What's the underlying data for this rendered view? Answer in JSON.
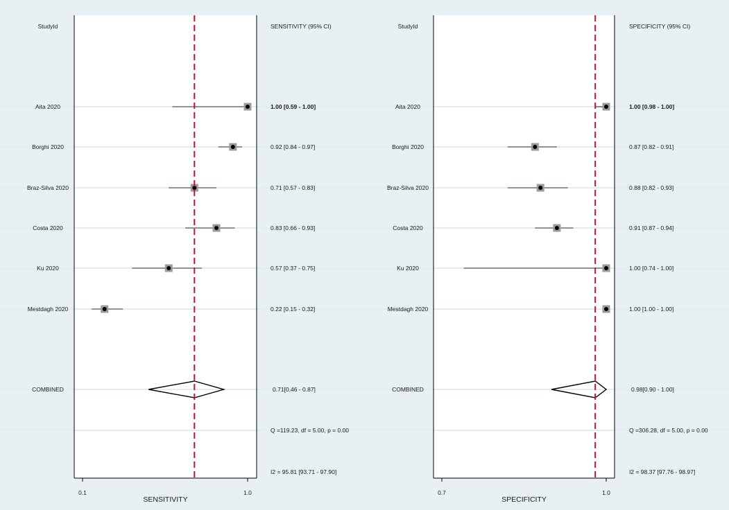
{
  "panels": [
    {
      "id": "sensitivity",
      "studyid_header": "StudyId",
      "ci_header": "SENSITIVITY (95% CI)",
      "combined_label": "COMBINED",
      "axis_title": "SENSITIVITY",
      "tick_labels": [
        "0.1",
        "1.0"
      ],
      "q_stat": "Q =119.23, df = 5.00, p =  0.00",
      "i2_stat": "I2 = 95.81 [93.71 - 97.90]"
    },
    {
      "id": "specificity",
      "studyid_header": "StudyId",
      "ci_header": "SPECIFICITY (95% CI)",
      "combined_label": "COMBINED",
      "axis_title": "SPECIFICITY",
      "tick_labels": [
        "0.7",
        "1.0"
      ],
      "q_stat": "Q =306.28, df = 5.00, p =  0.00",
      "i2_stat": "I2 = 98.37 [97.76 - 98.97]"
    }
  ],
  "chart_data": [
    {
      "type": "forest",
      "xlabel": "SENSITIVITY",
      "xlim": [
        0.1,
        1.0
      ],
      "ticks": [
        0.1,
        1.0
      ],
      "reference_line": 0.71,
      "studies": [
        {
          "name": "Aita 2020",
          "estimate": 1.0,
          "lower": 0.59,
          "upper": 1.0,
          "ci_text": "1.00 [0.59 - 1.00]",
          "bold": true
        },
        {
          "name": "Borghi 2020",
          "estimate": 0.92,
          "lower": 0.84,
          "upper": 0.97,
          "ci_text": "0.92 [0.84 - 0.97]"
        },
        {
          "name": "Braz-Silva 2020",
          "estimate": 0.71,
          "lower": 0.57,
          "upper": 0.83,
          "ci_text": "0.71 [0.57 - 0.83]"
        },
        {
          "name": "Costa 2020",
          "estimate": 0.83,
          "lower": 0.66,
          "upper": 0.93,
          "ci_text": "0.83 [0.66 - 0.93]"
        },
        {
          "name": "Ku 2020",
          "estimate": 0.57,
          "lower": 0.37,
          "upper": 0.75,
          "ci_text": "0.57 [0.37 - 0.75]"
        },
        {
          "name": "Mestdagh 2020",
          "estimate": 0.22,
          "lower": 0.15,
          "upper": 0.32,
          "ci_text": "0.22 [0.15 - 0.32]"
        }
      ],
      "combined": {
        "estimate": 0.71,
        "lower": 0.46,
        "upper": 0.87,
        "ci_text": "0.71[0.46 - 0.87]"
      }
    },
    {
      "type": "forest",
      "xlabel": "SPECIFICITY",
      "xlim": [
        0.7,
        1.0
      ],
      "ticks": [
        0.7,
        1.0
      ],
      "reference_line": 0.98,
      "studies": [
        {
          "name": "Aita 2020",
          "estimate": 1.0,
          "lower": 0.98,
          "upper": 1.0,
          "ci_text": "1.00 [0.98 - 1.00]",
          "bold": true
        },
        {
          "name": "Borghi 2020",
          "estimate": 0.87,
          "lower": 0.82,
          "upper": 0.91,
          "ci_text": "0.87 [0.82 - 0.91]"
        },
        {
          "name": "Braz-Silva 2020",
          "estimate": 0.88,
          "lower": 0.82,
          "upper": 0.93,
          "ci_text": "0.88 [0.82 - 0.93]"
        },
        {
          "name": "Costa 2020",
          "estimate": 0.91,
          "lower": 0.87,
          "upper": 0.94,
          "ci_text": "0.91 [0.87 - 0.94]"
        },
        {
          "name": "Ku 2020",
          "estimate": 1.0,
          "lower": 0.74,
          "upper": 1.0,
          "ci_text": "1.00 [0.74 - 1.00]"
        },
        {
          "name": "Mestdagh 2020",
          "estimate": 1.0,
          "lower": 1.0,
          "upper": 1.0,
          "ci_text": "1.00 [1.00 - 1.00]"
        }
      ],
      "combined": {
        "estimate": 0.98,
        "lower": 0.9,
        "upper": 1.0,
        "ci_text": "0.98[0.90 - 1.00]"
      }
    }
  ],
  "colors": {
    "background": "#e9f0f3",
    "panel": "#ffffff",
    "reference_line": "#c8102e",
    "point_box": "#9b9b9b",
    "point": "#000000",
    "row_guide": "#e3ecef"
  }
}
